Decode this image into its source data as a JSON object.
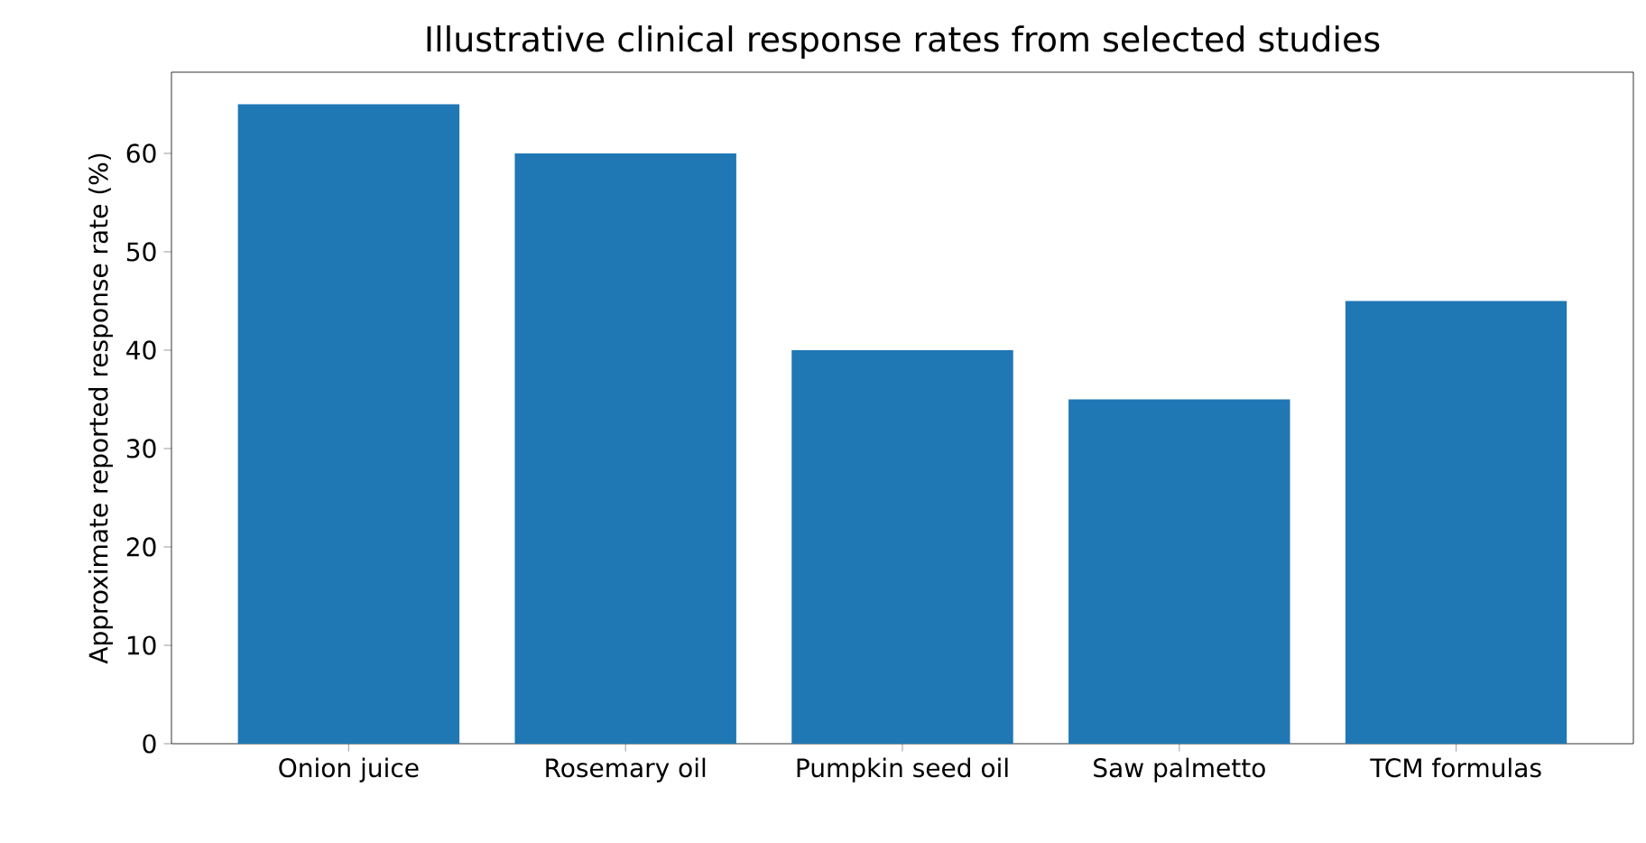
{
  "chart_data": {
    "type": "bar",
    "title": "Illustrative clinical response rates from selected studies",
    "ylabel": "Approximate reported response rate (%)",
    "categories": [
      "Onion juice",
      "Rosemary oil",
      "Pumpkin seed oil",
      "Saw palmetto",
      "TCM formulas"
    ],
    "values": [
      65,
      60,
      40,
      35,
      45
    ],
    "color": "#1f77b4",
    "ylim": [
      0,
      68.25
    ],
    "yticks": [
      0,
      10,
      20,
      30,
      40,
      50,
      60
    ]
  }
}
